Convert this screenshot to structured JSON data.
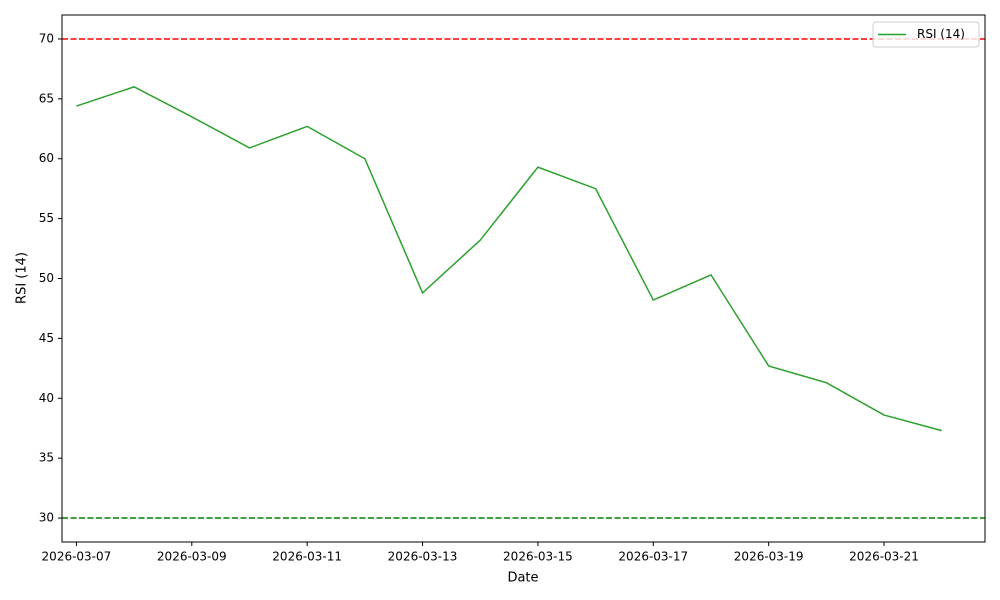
{
  "chart_data": {
    "type": "line",
    "xlabel": "Date",
    "ylabel": "RSI (14)",
    "x": [
      "2026-03-07",
      "2026-03-08",
      "2026-03-09",
      "2026-03-10",
      "2026-03-11",
      "2026-03-12",
      "2026-03-13",
      "2026-03-14",
      "2026-03-15",
      "2026-03-16",
      "2026-03-17",
      "2026-03-18",
      "2026-03-19",
      "2026-03-20",
      "2026-03-21",
      "2026-03-22"
    ],
    "series": [
      {
        "name": "RSI (14)",
        "color": "#2ca02c",
        "values": [
          64.4,
          66.0,
          63.5,
          60.9,
          62.7,
          60.0,
          48.8,
          53.2,
          59.3,
          57.5,
          48.2,
          50.3,
          42.7,
          41.3,
          38.6,
          37.3
        ]
      }
    ],
    "hlines": [
      {
        "value": 70,
        "color": "#ff0000"
      },
      {
        "value": 30,
        "color": "#008000"
      }
    ],
    "xlim": [
      "2026-03-06T18:00",
      "2026-03-22T18:00"
    ],
    "xticks": [
      "2026-03-07",
      "2026-03-09",
      "2026-03-11",
      "2026-03-13",
      "2026-03-15",
      "2026-03-17",
      "2026-03-19",
      "2026-03-21"
    ],
    "ylim": [
      28,
      72
    ],
    "yticks": [
      30,
      35,
      40,
      45,
      50,
      55,
      60,
      65,
      70
    ],
    "legend": "upper right"
  }
}
